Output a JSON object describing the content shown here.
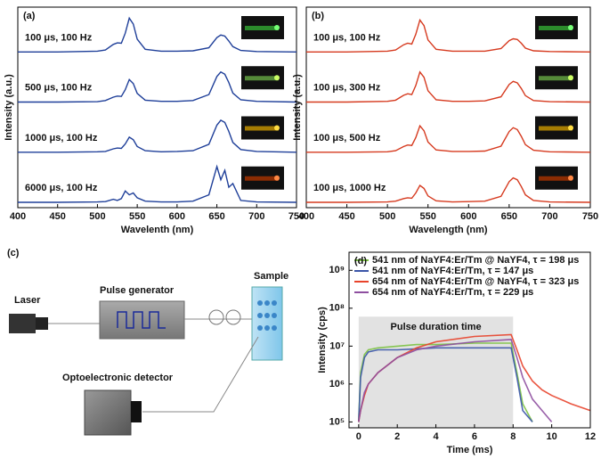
{
  "chart_data": [
    {
      "type": "spectra",
      "panel_label": "(a)",
      "xlabel": "Wavelenth (nm)",
      "ylabel": "Intensity (a.u.)",
      "xlim": [
        400,
        750
      ],
      "xticks": [
        400,
        450,
        500,
        550,
        600,
        650,
        700,
        750
      ],
      "ylim": [
        0,
        1
      ],
      "x": [
        400,
        450,
        500,
        510,
        520,
        525,
        530,
        535,
        540,
        545,
        550,
        560,
        580,
        600,
        620,
        640,
        650,
        655,
        660,
        665,
        670,
        680,
        700,
        750
      ],
      "series": [
        {
          "name": "100 μs, 100 Hz",
          "color": "#1f3f99",
          "values": [
            0,
            0,
            0.02,
            0.05,
            0.2,
            0.24,
            0.23,
            0.5,
            0.9,
            0.74,
            0.34,
            0.07,
            0.02,
            0.02,
            0.03,
            0.11,
            0.38,
            0.45,
            0.42,
            0.29,
            0.14,
            0.04,
            0.01,
            0
          ]
        },
        {
          "name": "500 μs, 100 Hz",
          "color": "#1f3f99",
          "values": [
            0,
            0,
            0.01,
            0.04,
            0.13,
            0.16,
            0.15,
            0.33,
            0.6,
            0.49,
            0.23,
            0.05,
            0.02,
            0.02,
            0.04,
            0.2,
            0.68,
            0.8,
            0.74,
            0.52,
            0.24,
            0.06,
            0.02,
            0
          ]
        },
        {
          "name": "1000 μs, 100 Hz",
          "color": "#1f3f99",
          "values": [
            0,
            0,
            0.01,
            0.02,
            0.09,
            0.11,
            0.1,
            0.22,
            0.4,
            0.33,
            0.15,
            0.04,
            0.01,
            0.02,
            0.04,
            0.21,
            0.72,
            0.85,
            0.79,
            0.55,
            0.26,
            0.07,
            0.02,
            0
          ]
        },
        {
          "name": "6000 μs, 100 Hz",
          "color": "#1f3f99",
          "values": [
            0,
            0,
            0.01,
            0.02,
            0.08,
            0.05,
            0.1,
            0.3,
            0.2,
            0.25,
            0.12,
            0.03,
            0.01,
            0.01,
            0.03,
            0.2,
            0.95,
            0.6,
            0.85,
            0.4,
            0.5,
            0.05,
            0.01,
            0
          ]
        }
      ]
    },
    {
      "type": "spectra",
      "panel_label": "(b)",
      "xlabel": "Wavelength (nm)",
      "ylabel": "Intensity (a.u.)",
      "xlim": [
        400,
        750
      ],
      "xticks": [
        400,
        450,
        500,
        550,
        600,
        650,
        700,
        750
      ],
      "ylim": [
        0,
        1
      ],
      "x": [
        400,
        450,
        500,
        510,
        520,
        525,
        530,
        535,
        540,
        545,
        550,
        560,
        580,
        600,
        620,
        640,
        650,
        655,
        660,
        665,
        670,
        680,
        700,
        750
      ],
      "series": [
        {
          "name": "100 μs, 100 Hz",
          "color": "#d63a1f",
          "values": [
            0,
            0,
            0.02,
            0.05,
            0.19,
            0.23,
            0.21,
            0.47,
            0.85,
            0.7,
            0.32,
            0.07,
            0.02,
            0.02,
            0.02,
            0.09,
            0.3,
            0.35,
            0.33,
            0.23,
            0.1,
            0.03,
            0.01,
            0
          ]
        },
        {
          "name": "100 μs, 300 Hz",
          "color": "#d63a1f",
          "values": [
            0,
            0,
            0.02,
            0.05,
            0.18,
            0.22,
            0.2,
            0.44,
            0.8,
            0.66,
            0.3,
            0.06,
            0.02,
            0.02,
            0.03,
            0.14,
            0.47,
            0.55,
            0.51,
            0.36,
            0.17,
            0.04,
            0.01,
            0
          ]
        },
        {
          "name": "100 μs, 500 Hz",
          "color": "#d63a1f",
          "values": [
            0,
            0,
            0.01,
            0.04,
            0.15,
            0.19,
            0.18,
            0.39,
            0.7,
            0.57,
            0.27,
            0.06,
            0.02,
            0.02,
            0.03,
            0.16,
            0.55,
            0.65,
            0.6,
            0.42,
            0.2,
            0.05,
            0.01,
            0
          ]
        },
        {
          "name": "100 μs, 1000 Hz",
          "color": "#d63a1f",
          "values": [
            0,
            0,
            0.01,
            0.03,
            0.1,
            0.12,
            0.11,
            0.25,
            0.45,
            0.37,
            0.17,
            0.04,
            0.01,
            0.02,
            0.03,
            0.16,
            0.55,
            0.65,
            0.6,
            0.42,
            0.2,
            0.05,
            0.01,
            0
          ]
        }
      ]
    },
    {
      "type": "line",
      "panel_label": "(d)",
      "xlabel": "Time (ms)",
      "ylabel": "Intensity (cps)",
      "log_y": true,
      "xlim": [
        -0.5,
        12
      ],
      "xticks": [
        0,
        2,
        4,
        6,
        8,
        10,
        12
      ],
      "ylim": [
        70000,
        3000000000
      ],
      "yticks": [
        {
          "value": 100000,
          "label": "10⁵"
        },
        {
          "value": 1000000,
          "label": "10⁶"
        },
        {
          "value": 10000000,
          "label": "10⁷"
        },
        {
          "value": 100000000,
          "label": "10⁸"
        },
        {
          "value": 1000000000,
          "label": "10⁹"
        }
      ],
      "shade": {
        "label": "Pulse duration time",
        "x": [
          0,
          8
        ],
        "y": [
          70000,
          60000000
        ]
      },
      "legend": "top-left",
      "x": [
        0,
        0.1,
        0.3,
        0.5,
        1,
        2,
        3,
        4,
        6,
        7.9,
        8.2,
        8.5,
        9,
        9.5,
        10,
        11,
        12
      ],
      "series": [
        {
          "name": "541 nm of NaYF4:Er/Tm @ NaYF4, τ = 198 μs",
          "color": "#7cc242",
          "values": [
            100000,
            2000000,
            6000000,
            8000000,
            9000000,
            10000000,
            11000000,
            11000000,
            12000000,
            12000000,
            2000000,
            300000,
            100000,
            null,
            null,
            null,
            null
          ]
        },
        {
          "name": "541 nm of NaYF4:Er/Tm, τ = 147 μs",
          "color": "#3b55a8",
          "values": [
            100000,
            1500000,
            5000000,
            7000000,
            8000000,
            8000000,
            8500000,
            9000000,
            9000000,
            9000000,
            1500000,
            200000,
            100000,
            null,
            null,
            null,
            null
          ]
        },
        {
          "name": "654 nm of NaYF4:Er/Tm @ NaYF4, τ = 323 μs",
          "color": "#e8432b",
          "values": [
            100000,
            200000,
            500000,
            1000000,
            2000000,
            5000000,
            9000000,
            13000000,
            18000000,
            20000000,
            8000000,
            3000000,
            1200000,
            700000,
            500000,
            300000,
            200000
          ]
        },
        {
          "name": "654 nm of NaYF4:Er/Tm, τ = 229 μs",
          "color": "#8e4fa0",
          "values": [
            100000,
            200000,
            600000,
            1000000,
            2000000,
            5000000,
            8000000,
            10000000,
            13000000,
            15000000,
            5000000,
            1500000,
            400000,
            200000,
            100000,
            null,
            null
          ]
        }
      ]
    }
  ],
  "diagram": {
    "panel_label": "(c)",
    "laser": "Laser",
    "pulse_generator": "Pulse generator",
    "sample": "Sample",
    "detector": "Optoelectronic detector"
  }
}
